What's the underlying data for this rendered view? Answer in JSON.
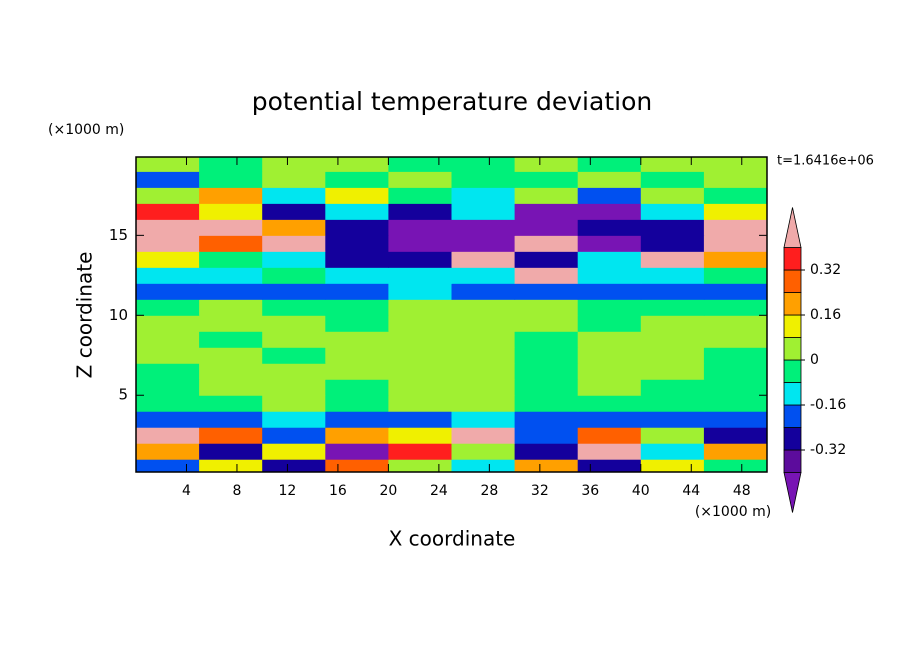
{
  "chart_data": {
    "type": "contour",
    "title": "potential temperature deviation",
    "subtitle": "t=1.6416e+06",
    "x_label": "X coordinate",
    "y_label": "Z coordinate",
    "x_unit": "(×1000 m)",
    "y_unit": "(×1000 m)",
    "xlim": [
      0,
      50
    ],
    "ylim": [
      0.2,
      19.9
    ],
    "xticks": [
      4,
      8,
      12,
      16,
      20,
      24,
      28,
      32,
      36,
      40,
      44,
      48
    ],
    "yticks": [
      5,
      10,
      15
    ],
    "x": [
      2.5,
      7.5,
      12.5,
      17.5,
      22.5,
      27.5,
      32.5,
      37.5,
      42.5,
      47.5
    ],
    "y": [
      0.5,
      1.5,
      2.5,
      3.5,
      4.5,
      5.5,
      6.5,
      7.5,
      8.5,
      9.5,
      10.5,
      11.5,
      12.5,
      13.5,
      14.5,
      15.5,
      16.5,
      17.5,
      18.5,
      19.5
    ],
    "z": [
      [
        -0.2,
        0.12,
        -0.3,
        0.28,
        0.04,
        -0.12,
        0.2,
        -0.3,
        0.12,
        -0.04
      ],
      [
        0.2,
        -0.3,
        0.12,
        -0.45,
        0.36,
        0.04,
        -0.3,
        0.5,
        -0.12,
        0.2
      ],
      [
        0.5,
        0.28,
        -0.2,
        0.2,
        0.12,
        0.5,
        -0.2,
        0.28,
        0.04,
        -0.3
      ],
      [
        -0.2,
        -0.2,
        -0.12,
        -0.2,
        -0.2,
        -0.12,
        -0.2,
        -0.2,
        -0.2,
        -0.2
      ],
      [
        -0.04,
        -0.04,
        0.04,
        -0.04,
        0.04,
        0.04,
        -0.04,
        -0.04,
        -0.04,
        -0.04
      ],
      [
        -0.04,
        0.04,
        0.04,
        -0.04,
        0.04,
        0.04,
        -0.04,
        0.04,
        -0.04,
        -0.04
      ],
      [
        -0.04,
        0.04,
        0.04,
        0.04,
        0.04,
        0.04,
        -0.04,
        0.04,
        0.04,
        -0.04
      ],
      [
        0.04,
        0.04,
        -0.04,
        0.04,
        0.04,
        0.04,
        -0.04,
        0.04,
        0.04,
        -0.04
      ],
      [
        0.04,
        -0.04,
        0.04,
        0.04,
        0.04,
        0.04,
        -0.04,
        0.04,
        0.04,
        0.04
      ],
      [
        0.04,
        0.04,
        0.04,
        -0.04,
        0.04,
        0.04,
        0.04,
        -0.04,
        0.04,
        0.04
      ],
      [
        -0.04,
        0.04,
        -0.04,
        -0.04,
        0.04,
        0.04,
        0.04,
        -0.04,
        -0.04,
        -0.04
      ],
      [
        -0.2,
        -0.2,
        -0.2,
        -0.2,
        -0.12,
        -0.2,
        -0.2,
        -0.2,
        -0.2,
        -0.2
      ],
      [
        -0.12,
        -0.12,
        -0.04,
        -0.12,
        -0.12,
        -0.12,
        0.5,
        -0.12,
        -0.12,
        -0.04
      ],
      [
        0.12,
        -0.04,
        -0.12,
        -0.3,
        -0.3,
        0.5,
        -0.3,
        -0.12,
        0.5,
        0.2
      ],
      [
        0.5,
        0.28,
        0.5,
        -0.3,
        -0.45,
        -0.45,
        0.5,
        -0.45,
        -0.3,
        0.5
      ],
      [
        0.5,
        0.5,
        0.2,
        -0.3,
        -0.45,
        -0.45,
        -0.45,
        -0.3,
        -0.3,
        0.5
      ],
      [
        0.36,
        0.12,
        -0.3,
        -0.12,
        -0.3,
        -0.12,
        -0.45,
        -0.45,
        -0.12,
        0.12
      ],
      [
        0.04,
        0.2,
        -0.12,
        0.12,
        -0.04,
        -0.12,
        0.04,
        -0.2,
        0.04,
        -0.04
      ],
      [
        -0.2,
        -0.04,
        0.04,
        -0.04,
        0.04,
        -0.04,
        -0.04,
        0.04,
        -0.04,
        0.04
      ],
      [
        0.04,
        -0.04,
        0.04,
        0.04,
        -0.04,
        -0.04,
        0.04,
        -0.04,
        0.04,
        0.04
      ]
    ],
    "levels": [
      -0.4,
      -0.32,
      -0.24,
      -0.16,
      -0.08,
      0,
      0.08,
      0.16,
      0.24,
      0.32,
      0.4
    ],
    "colors": [
      "#7814b4",
      "#5c0c9c",
      "#14009c",
      "#0050f0",
      "#00e6f0",
      "#00f07a",
      "#a0f032",
      "#f0f000",
      "#ffa000",
      "#ff6000",
      "#ff1e1e",
      "#f0aaaa"
    ],
    "colorbar_ticks": [
      0.32,
      0.16,
      0,
      -0.16,
      -0.32
    ]
  }
}
